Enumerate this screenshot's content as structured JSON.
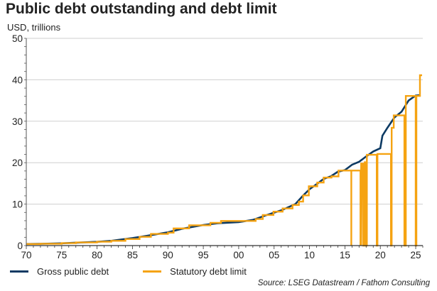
{
  "header": {
    "title": "Public debt outstanding and debt limit",
    "subtitle": "USD, trillions"
  },
  "footer": {
    "source": "Source: LSEG Datastream / Fathom Consulting"
  },
  "legend": {
    "items": [
      {
        "label": "Gross public debt",
        "color": "#0d3a63"
      },
      {
        "label": "Statutory debt limit",
        "color": "#f5a312"
      }
    ]
  },
  "chart_data": {
    "type": "line",
    "xlabel": "",
    "ylabel": "USD, trillions",
    "xlim": [
      1970,
      2026
    ],
    "ylim": [
      0,
      50
    ],
    "x_tick_labels": [
      "70",
      "75",
      "80",
      "85",
      "90",
      "95",
      "00",
      "05",
      "10",
      "15",
      "20",
      "25"
    ],
    "x_tick_years": [
      1970,
      1975,
      1980,
      1985,
      1990,
      1995,
      2000,
      2005,
      2010,
      2015,
      2020,
      2025
    ],
    "y_ticks": [
      0,
      10,
      20,
      30,
      40,
      50
    ],
    "grid": "horizontal",
    "legend_position": "bottom",
    "series": [
      {
        "name": "Gross public debt",
        "color": "#0d3a63",
        "x": [
          1970,
          1972,
          1975,
          1977,
          1980,
          1982,
          1985,
          1987,
          1990,
          1992,
          1995,
          1997,
          2000,
          2002,
          2004,
          2006,
          2008,
          2009,
          2010,
          2011,
          2012,
          2013,
          2014,
          2015,
          2016,
          2017,
          2018,
          2019,
          2020,
          2020.3,
          2021,
          2022,
          2023,
          2024,
          2025,
          2025.7
        ],
        "y": [
          0.38,
          0.43,
          0.54,
          0.7,
          0.91,
          1.14,
          1.82,
          2.35,
          3.2,
          4.06,
          4.97,
          5.37,
          5.67,
          6.2,
          7.4,
          8.5,
          10.0,
          11.9,
          13.6,
          14.8,
          16.1,
          16.7,
          17.8,
          18.2,
          19.5,
          20.2,
          21.5,
          22.7,
          23.5,
          26.5,
          28.4,
          30.9,
          32.3,
          35.0,
          36.2,
          36.3
        ]
      },
      {
        "name": "Statutory debt limit",
        "color": "#f5a312",
        "x": [
          1970,
          1972,
          1972,
          1975,
          1975,
          1977,
          1977,
          1980,
          1980,
          1982,
          1982,
          1984,
          1984,
          1986,
          1986,
          1987.6,
          1987.6,
          1990,
          1990,
          1990.8,
          1990.8,
          1993,
          1993,
          1996,
          1996,
          1997.5,
          1997.5,
          2002.4,
          2002.4,
          2003.4,
          2003.4,
          2004.9,
          2004.9,
          2006.2,
          2006.2,
          2007.6,
          2007.6,
          2008.5,
          2008.5,
          2009.1,
          2009.1,
          2009.9,
          2009.9,
          2011.1,
          2011.1,
          2012,
          2012,
          2013.1,
          2013.1,
          2014.1,
          2014.1,
          2015.9,
          2015.9,
          2015.9,
          2015.9,
          2017.2,
          2017.2,
          2017.3,
          2017.3,
          2017.4,
          2017.6,
          2017.6,
          2017.8,
          2017.8,
          2017.9,
          2017.9,
          2018.1,
          2018.1,
          2019.5,
          2019.5,
          2019.6,
          2019.6,
          2020,
          2021.5,
          2021.5,
          2021.6,
          2021.6,
          2021.9,
          2021.9,
          2022,
          2023.4,
          2023.4,
          2023.6,
          2023.6,
          2025,
          2025,
          2025.1,
          2025.1,
          2025.6,
          2025.6,
          2025.9
        ],
        "y": [
          0.38,
          0.38,
          0.45,
          0.45,
          0.58,
          0.58,
          0.75,
          0.75,
          0.93,
          0.93,
          1.14,
          1.14,
          1.58,
          1.58,
          2.1,
          2.1,
          2.8,
          2.8,
          3.12,
          3.12,
          4.15,
          4.15,
          4.9,
          4.9,
          5.5,
          5.5,
          5.95,
          5.95,
          6.4,
          6.4,
          7.38,
          7.38,
          8.18,
          8.18,
          8.96,
          8.96,
          9.8,
          9.8,
          10.6,
          10.6,
          12.1,
          12.1,
          14.3,
          14.3,
          15.2,
          15.2,
          16.4,
          16.4,
          16.7,
          16.7,
          18.1,
          18.1,
          18.1,
          0,
          18.1,
          18.1,
          0,
          20.0,
          0,
          19.8,
          19.8,
          0,
          0,
          20.1,
          20.1,
          0,
          0,
          21.9,
          21.9,
          0,
          0,
          22.1,
          22.1,
          22.1,
          0,
          0,
          28.4,
          28.4,
          31.4,
          31.4,
          31.4,
          0,
          0,
          36.1,
          36.1,
          0,
          0,
          36.1,
          36.1,
          41.1,
          41.1
        ]
      }
    ]
  }
}
